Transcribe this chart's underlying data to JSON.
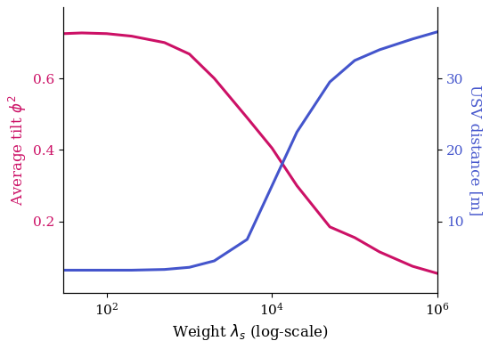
{
  "x_values": [
    30,
    50,
    100,
    200,
    500,
    1000,
    2000,
    5000,
    10000,
    20000,
    50000,
    100000,
    200000,
    500000,
    1000000
  ],
  "tilt_values": [
    0.725,
    0.727,
    0.725,
    0.718,
    0.7,
    0.668,
    0.6,
    0.49,
    0.405,
    0.3,
    0.185,
    0.155,
    0.115,
    0.075,
    0.055
  ],
  "usv_values": [
    3.2,
    3.2,
    3.2,
    3.2,
    3.3,
    3.6,
    4.5,
    7.5,
    15.0,
    22.5,
    29.5,
    32.5,
    34.0,
    35.5,
    36.5
  ],
  "tilt_color": "#cc1166",
  "usv_color": "#4455cc",
  "xlabel": "Weight $\\lambda_s$ (log-scale)",
  "ylabel_left": "Average tilt $\\phi^2$",
  "ylabel_right": "USV distance [m]",
  "xlim_log": [
    30,
    1000000
  ],
  "ylim_left": [
    0.0,
    0.8
  ],
  "ylim_right": [
    0.0,
    40.0
  ],
  "yticks_left": [
    0.2,
    0.4,
    0.6
  ],
  "yticks_right": [
    10,
    20,
    30
  ],
  "xticks": [
    100,
    10000,
    1000000
  ],
  "linewidth": 2.2,
  "figsize": [
    5.5,
    3.92
  ],
  "dpi": 100
}
